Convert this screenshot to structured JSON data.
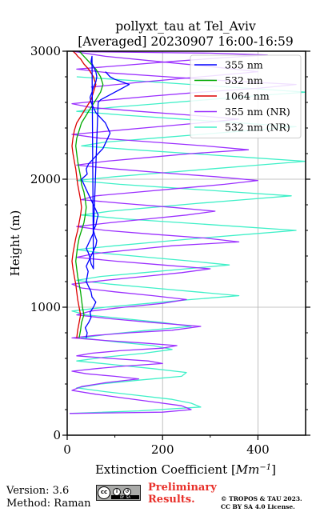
{
  "chart_data": {
    "type": "line",
    "title": "pollyxt_tau at Tel_Aviv",
    "subtitle": "[Averaged] 20230907 16:00-16:59",
    "xlabel": "Extinction Coefficient",
    "xlabel_unit_base": "Mm",
    "xlabel_unit_exp": "−1",
    "ylabel": "Height (m)",
    "xlim": [
      0,
      500
    ],
    "ylim": [
      0,
      3000
    ],
    "xticks": [
      0,
      200,
      400
    ],
    "yticks": [
      0,
      1000,
      2000,
      3000
    ],
    "grid": true,
    "legend_position": "top-right",
    "series": [
      {
        "name": "355 nm",
        "color": "#0000ff",
        "x": [
          40,
          42,
          38,
          45,
          50,
          48,
          55,
          60,
          52,
          50,
          45,
          40,
          42,
          44,
          40,
          45,
          50,
          55,
          60,
          62,
          58,
          55,
          60,
          62,
          65,
          60,
          55,
          50,
          45,
          40,
          35,
          30,
          42,
          40,
          45,
          55,
          65,
          75,
          80,
          85,
          90,
          85,
          80,
          70,
          60,
          55,
          50,
          48,
          52,
          55,
          60,
          62,
          60,
          55,
          50,
          52,
          55,
          50,
          48,
          45,
          40,
          45,
          50,
          55,
          65,
          70,
          80,
          90,
          100,
          110,
          120,
          130,
          115,
          100,
          90,
          80
        ],
        "y": [
          760,
          800,
          840,
          880,
          920,
          960,
          1000,
          1040,
          1080,
          1120,
          1160,
          1200,
          1240,
          1280,
          1320,
          1360,
          1400,
          1440,
          1480,
          1520,
          1560,
          1600,
          1640,
          1680,
          1720,
          1760,
          1800,
          1840,
          1880,
          1920,
          1960,
          2000,
          2040,
          2080,
          2120,
          2160,
          2200,
          2240,
          2280,
          2320,
          2360,
          2400,
          2440,
          2480,
          2520,
          2560,
          2600,
          2640,
          2680,
          2720,
          2760,
          2800,
          2840,
          2880,
          2920,
          2960,
          1300,
          1340,
          1380,
          1420,
          1460,
          1500,
          1540,
          1580,
          2600,
          2620,
          2640,
          2660,
          2680,
          2700,
          2720,
          2740,
          2760,
          2780,
          2800,
          2840
        ]
      },
      {
        "name": "532 nm",
        "color": "#00aa00",
        "x": [
          25,
          28,
          30,
          35,
          32,
          30,
          28,
          25,
          22,
          20,
          18,
          20,
          22,
          25,
          30,
          35,
          38,
          40,
          38,
          35,
          30,
          28,
          25,
          22,
          20,
          18,
          20,
          25,
          30,
          40,
          50,
          60,
          70,
          75,
          70,
          60,
          50,
          40,
          35,
          30,
          28,
          25
        ],
        "y": [
          760,
          820,
          880,
          940,
          1000,
          1060,
          1120,
          1180,
          1240,
          1300,
          1360,
          1420,
          1480,
          1540,
          1600,
          1660,
          1720,
          1780,
          1840,
          1900,
          1960,
          2020,
          2080,
          2140,
          2200,
          2260,
          2320,
          2380,
          2440,
          2500,
          2560,
          2620,
          2680,
          2740,
          2800,
          2860,
          2900,
          2940,
          2960,
          2980,
          2990,
          3000
        ]
      },
      {
        "name": "1064 nm",
        "color": "#dd0000",
        "x": [
          20,
          22,
          25,
          28,
          25,
          22,
          20,
          18,
          15,
          12,
          10,
          12,
          15,
          18,
          22,
          25,
          28,
          30,
          28,
          25,
          22,
          20,
          18,
          15,
          12,
          10,
          12,
          15,
          20,
          30,
          40,
          50,
          55,
          60,
          55,
          45,
          35,
          28,
          22,
          18,
          15,
          12
        ],
        "y": [
          760,
          820,
          880,
          940,
          1000,
          1060,
          1120,
          1180,
          1240,
          1300,
          1360,
          1420,
          1480,
          1540,
          1600,
          1660,
          1720,
          1780,
          1840,
          1900,
          1960,
          2020,
          2080,
          2140,
          2200,
          2260,
          2320,
          2380,
          2440,
          2500,
          2560,
          2620,
          2680,
          2740,
          2800,
          2860,
          2900,
          2940,
          2960,
          2980,
          2990,
          3000
        ]
      },
      {
        "name": "355 nm (NR)",
        "color": "#9b30ff",
        "x": [
          5,
          200,
          260,
          240,
          180,
          120,
          60,
          10,
          30,
          80,
          150,
          100,
          40,
          10,
          60,
          120,
          200,
          170,
          90,
          20,
          50,
          110,
          200,
          230,
          160,
          80,
          10,
          60,
          130,
          220,
          280,
          180,
          90,
          20,
          50,
          120,
          200,
          250,
          180,
          100,
          30,
          10,
          80,
          160,
          240,
          300,
          200,
          100,
          20,
          60,
          140,
          220,
          360,
          290,
          180,
          80,
          20,
          90,
          170,
          250,
          310,
          220,
          120,
          30,
          60,
          150,
          240,
          330,
          400,
          310,
          200,
          100,
          20,
          80,
          170,
          260,
          380,
          290,
          180,
          70,
          10,
          100,
          190,
          280,
          360,
          260,
          150,
          50,
          10,
          90,
          180,
          280,
          400,
          480,
          330,
          210,
          90,
          20,
          120,
          220,
          330,
          420,
          300,
          180,
          60,
          10,
          80,
          190,
          300,
          400,
          280,
          160,
          50
        ],
        "y": [
          170,
          180,
          200,
          230,
          260,
          290,
          320,
          350,
          380,
          410,
          440,
          460,
          480,
          500,
          520,
          540,
          560,
          580,
          600,
          620,
          640,
          660,
          680,
          700,
          720,
          740,
          760,
          780,
          800,
          820,
          850,
          880,
          910,
          940,
          970,
          1000,
          1030,
          1060,
          1090,
          1120,
          1150,
          1180,
          1210,
          1240,
          1270,
          1300,
          1330,
          1360,
          1390,
          1420,
          1450,
          1480,
          1510,
          1540,
          1570,
          1600,
          1630,
          1660,
          1690,
          1720,
          1750,
          1780,
          1810,
          1840,
          1870,
          1900,
          1930,
          1960,
          1990,
          2020,
          2050,
          2080,
          2110,
          2140,
          2170,
          2200,
          2230,
          2260,
          2290,
          2320,
          2350,
          2380,
          2410,
          2440,
          2470,
          2500,
          2530,
          2560,
          2590,
          2620,
          2650,
          2680,
          2710,
          2740,
          2770,
          2800,
          2830,
          2860,
          2890,
          2920,
          2950,
          2970,
          2985,
          2990,
          2995,
          3000,
          2960,
          2920,
          2880,
          2840,
          2800,
          2760,
          2720
        ]
      },
      {
        "name": "532 nm (NR)",
        "color": "#40f0c8",
        "x": [
          5,
          150,
          280,
          260,
          220,
          150,
          80,
          20,
          70,
          150,
          240,
          250,
          180,
          100,
          20,
          80,
          160,
          220,
          180,
          100,
          30,
          90,
          170,
          260,
          200,
          120,
          40,
          10,
          80,
          170,
          260,
          360,
          270,
          180,
          90,
          20,
          70,
          160,
          250,
          340,
          260,
          170,
          80,
          20,
          100,
          190,
          280,
          380,
          480,
          360,
          240,
          120,
          30,
          90,
          180,
          270,
          370,
          470,
          350,
          230,
          110,
          20,
          100,
          200,
          300,
          400,
          500,
          380,
          260,
          140,
          30,
          80,
          180,
          280,
          380,
          480,
          360,
          240,
          120,
          20,
          90,
          190,
          290,
          390,
          500,
          380,
          260,
          140,
          20
        ],
        "y": [
          170,
          190,
          220,
          250,
          280,
          310,
          340,
          370,
          400,
          430,
          460,
          490,
          520,
          550,
          580,
          610,
          640,
          670,
          700,
          730,
          760,
          790,
          820,
          850,
          880,
          910,
          940,
          970,
          1000,
          1030,
          1060,
          1090,
          1120,
          1150,
          1180,
          1210,
          1240,
          1270,
          1300,
          1330,
          1360,
          1390,
          1420,
          1450,
          1480,
          1510,
          1540,
          1570,
          1600,
          1630,
          1660,
          1690,
          1720,
          1750,
          1780,
          1810,
          1840,
          1870,
          1900,
          1930,
          1960,
          1990,
          2020,
          2050,
          2080,
          2110,
          2140,
          2170,
          2200,
          2230,
          2260,
          2290,
          2320,
          2350,
          2380,
          2410,
          2440,
          2470,
          2500,
          2530,
          2560,
          2590,
          2620,
          2650,
          2680,
          2710,
          2740,
          2770,
          2800
        ]
      }
    ]
  },
  "footer": {
    "version": "Version: 3.6",
    "method": "Method: Raman",
    "preliminary_1": "Preliminary",
    "preliminary_2": "Results.",
    "copyright_1": "© TROPOS & TAU 2023.",
    "copyright_2": "CC BY SA 4.0 License.",
    "cc_logo_text": "cc",
    "cc_by": "BY",
    "cc_sa": "SA"
  }
}
